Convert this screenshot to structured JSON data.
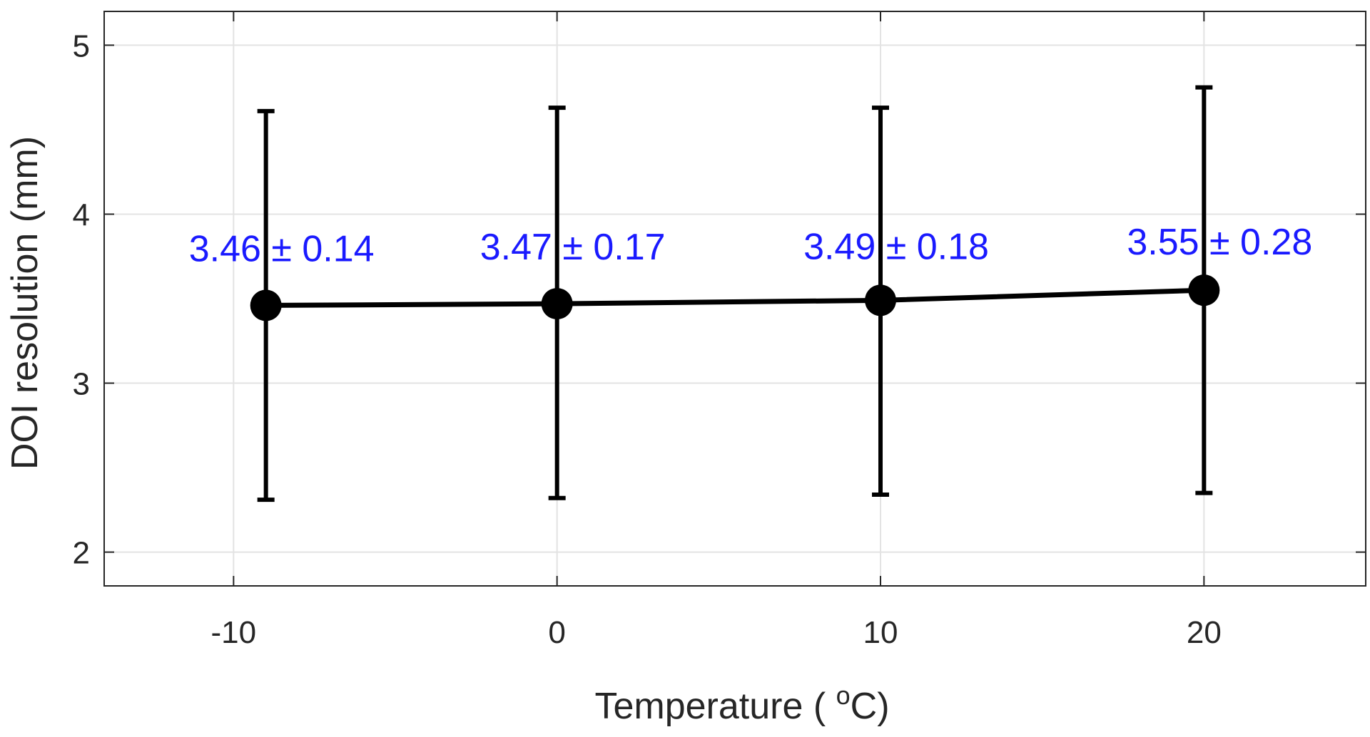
{
  "chart_data": {
    "type": "line",
    "x": [
      -9,
      0,
      10,
      20
    ],
    "series": [
      {
        "values": [
          3.46,
          3.47,
          3.49,
          3.55
        ],
        "error_low": [
          2.31,
          2.32,
          2.34,
          2.35
        ],
        "error_high": [
          4.61,
          4.63,
          4.63,
          4.75
        ]
      }
    ],
    "data_labels": [
      "3.46 ± 0.14",
      "3.47 ± 0.17",
      "3.49 ± 0.18",
      "3.55 ± 0.28"
    ],
    "xlabel_prefix": "Temperature ( ",
    "xlabel_super": "o",
    "xlabel_suffix": "C)",
    "ylabel": "DOI resolution (mm)",
    "xlim": [
      -14,
      25
    ],
    "ylim": [
      1.8,
      5.2
    ],
    "xticks": [
      -10,
      0,
      10,
      20
    ],
    "xtick_labels": [
      "-10",
      "0",
      "10",
      "20"
    ],
    "yticks": [
      2,
      3,
      4,
      5
    ],
    "ytick_labels": [
      "2",
      "3",
      "4",
      "5"
    ],
    "grid": true,
    "colors": {
      "line": "#000000",
      "label": "#1a1aff",
      "grid": "#e3e3e3",
      "axis": "#262626"
    }
  }
}
